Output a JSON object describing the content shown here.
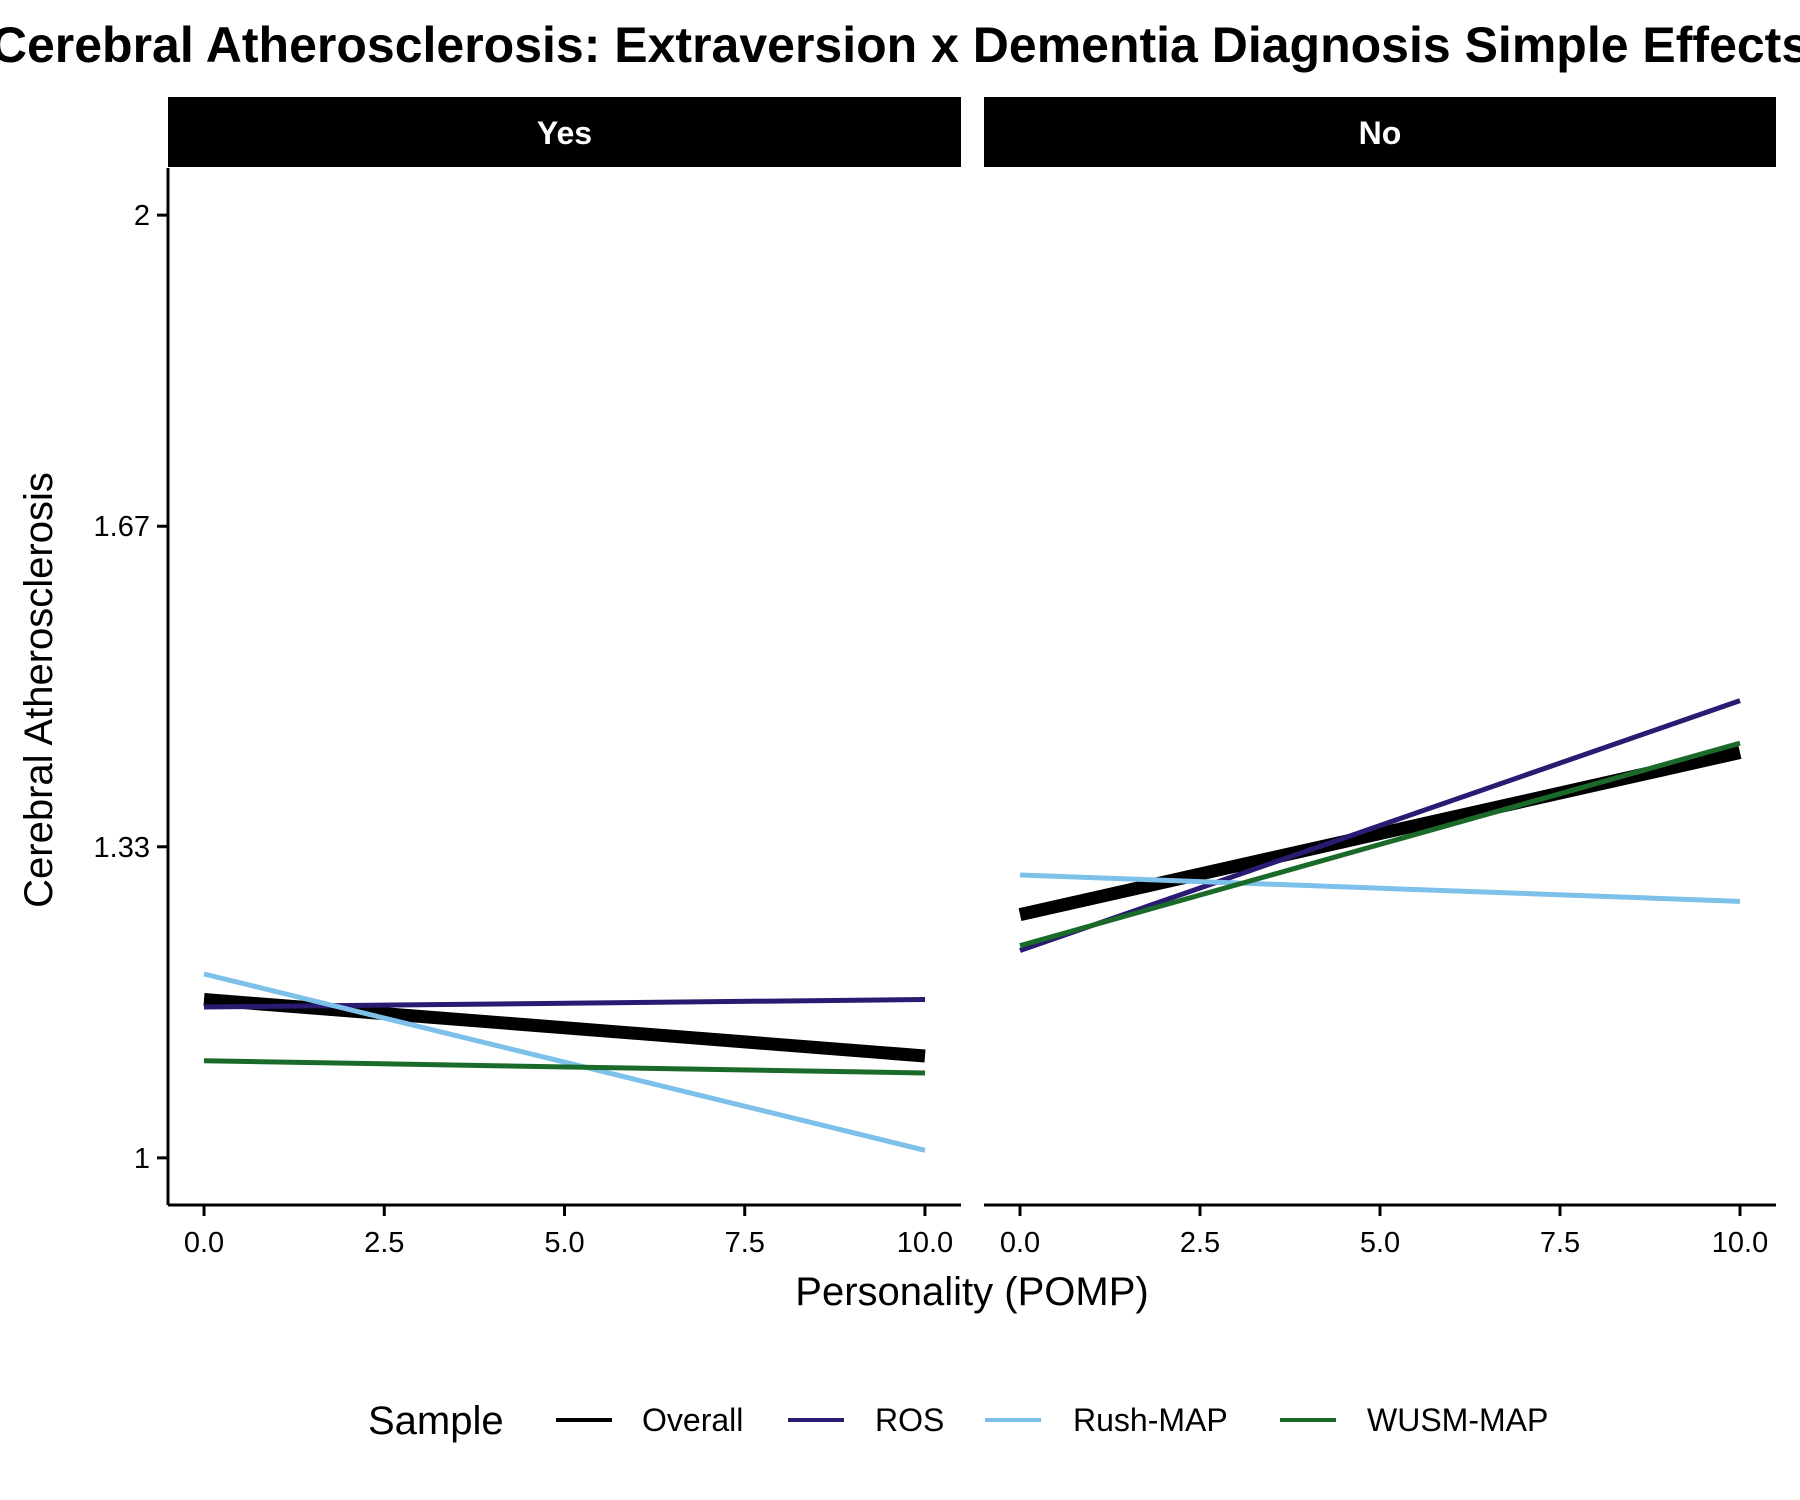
{
  "chart_data": {
    "type": "line",
    "title": "Cerebral Atherosclerosis: Extraversion x Dementia Diagnosis Simple Effects",
    "xlabel": "Personality (POMP)",
    "ylabel": "Cerebral Atherosclerosis",
    "xlim": [
      -0.5,
      10.5
    ],
    "ylim": [
      0.95,
      2.05
    ],
    "x_ticks": [
      0,
      2.5,
      5,
      7.5,
      10
    ],
    "x_tick_labels": [
      "0.0",
      "2.5",
      "5.0",
      "7.5",
      "10.0"
    ],
    "y_ticks": [
      1,
      1.33,
      1.67,
      2
    ],
    "y_tick_labels": [
      "1",
      "1.33",
      "1.67",
      "2"
    ],
    "grid": false,
    "legend": {
      "title": "Sample",
      "position": "bottom",
      "entries": [
        "Overall",
        "ROS",
        "Rush-MAP",
        "WUSM-MAP"
      ]
    },
    "colors": {
      "Overall": "#000000",
      "ROS": "#2a1a72",
      "Rush-MAP": "#7dc0ea",
      "WUSM-MAP": "#1a6b2a"
    },
    "panels": [
      {
        "label": "Yes",
        "series": [
          {
            "name": "Overall",
            "x": [
              0,
              10
            ],
            "y": [
              1.168,
              1.108
            ]
          },
          {
            "name": "ROS",
            "x": [
              0,
              10
            ],
            "y": [
              1.16,
              1.168
            ]
          },
          {
            "name": "Rush-MAP",
            "x": [
              0,
              10
            ],
            "y": [
              1.195,
              1.008
            ]
          },
          {
            "name": "WUSM-MAP",
            "x": [
              0,
              10
            ],
            "y": [
              1.103,
              1.09
            ]
          }
        ]
      },
      {
        "label": "No",
        "series": [
          {
            "name": "Overall",
            "x": [
              0,
              10
            ],
            "y": [
              1.258,
              1.43
            ]
          },
          {
            "name": "ROS",
            "x": [
              0,
              10
            ],
            "y": [
              1.22,
              1.485
            ]
          },
          {
            "name": "Rush-MAP",
            "x": [
              0,
              10
            ],
            "y": [
              1.3,
              1.272
            ]
          },
          {
            "name": "WUSM-MAP",
            "x": [
              0,
              10
            ],
            "y": [
              1.225,
              1.44
            ]
          }
        ]
      }
    ]
  }
}
